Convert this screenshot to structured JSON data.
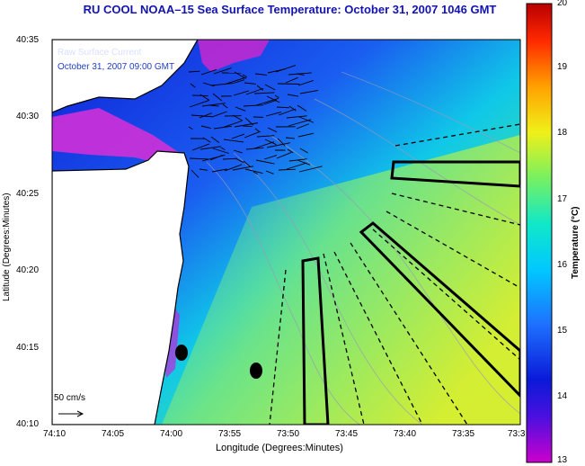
{
  "title": "RU COOL  NOAA–15  Sea Surface Temperature:  October 31, 2007 1046 GMT",
  "current_label": "Raw Surface Current",
  "current_time": "October 31, 2007 09:00 GMT",
  "scale_label": "50 cm/s",
  "x_axis": {
    "label": "Longitude (Degrees:Minutes)",
    "ticks": [
      "74:10",
      "74:05",
      "74:00",
      "73:55",
      "73:50",
      "73:45",
      "73:40",
      "73:35",
      "73:3"
    ]
  },
  "y_axis": {
    "label": "Latitude (Degrees:Minutes)",
    "ticks": [
      "40:35",
      "40:30",
      "40:25",
      "40:20",
      "40:15",
      "40:10"
    ]
  },
  "colorbar": {
    "label": "Temperature (°C)",
    "ticks": [
      "20",
      "19",
      "18",
      "17",
      "16",
      "15",
      "14",
      "13"
    ],
    "min": 13,
    "max": 20,
    "colors": [
      "#cc00cc",
      "#0a14d8",
      "#1e78ff",
      "#00d2ff",
      "#10e8c8",
      "#80f060",
      "#f0f018",
      "#ffa000",
      "#ff3000",
      "#c00000"
    ]
  },
  "colors": {
    "title": "#1313b0",
    "land": "#ffffff",
    "coast": "#000000",
    "frame": "#000000"
  }
}
